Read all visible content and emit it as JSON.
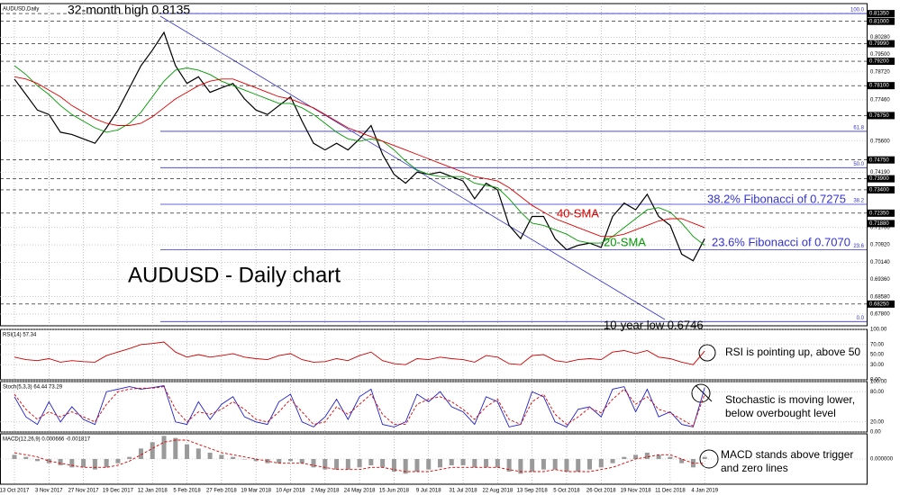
{
  "chart_data": [
    {
      "type": "line",
      "label": "AUDUSD,Daily",
      "title": "AUDUSD - Daily chart",
      "categories": [
        "13 Oct 2017",
        null,
        null,
        "3 Nov 2017",
        null,
        null,
        "27 Nov 2017",
        null,
        null,
        "19 Dec 2017",
        null,
        null,
        "12 Jan 2018",
        null,
        null,
        "5 Feb 2018",
        null,
        null,
        "27 Feb 2018",
        null,
        null,
        "19 Mar 2018",
        null,
        null,
        "10 Apr 2018",
        null,
        null,
        "2 May 2018",
        null,
        null,
        "24 May 2018",
        null,
        null,
        "15 Jun 2018",
        null,
        null,
        "9 Jul 2018",
        null,
        null,
        "31 Jul 2018",
        null,
        null,
        "22 Aug 2018",
        null,
        null,
        "13 Sep 2018",
        null,
        null,
        "5 Oct 2018",
        null,
        null,
        "26 Oct 2018",
        null,
        null,
        "19 Nov 2018",
        null,
        null,
        "11 Dec 2018",
        null,
        null,
        "4 Jan 2019"
      ],
      "series": [
        {
          "color": "#000000",
          "values": [
            0.784,
            0.777,
            0.77,
            0.768,
            0.76,
            0.759,
            0.757,
            0.755,
            0.762,
            0.77,
            0.78,
            0.79,
            0.797,
            0.805,
            0.79,
            0.782,
            0.785,
            0.778,
            0.78,
            0.782,
            0.775,
            0.77,
            0.768,
            0.772,
            0.776,
            0.765,
            0.755,
            0.752,
            0.755,
            0.752,
            0.757,
            0.763,
            0.75,
            0.741,
            0.737,
            0.742,
            0.741,
            0.742,
            0.74,
            0.738,
            0.73,
            0.737,
            0.734,
            0.718,
            0.712,
            0.722,
            0.722,
            0.712,
            0.707,
            0.709,
            0.71,
            0.708,
            0.722,
            0.728,
            0.725,
            0.732,
            0.722,
            0.718,
            0.705,
            0.702,
            0.712
          ]
        },
        {
          "color": "#009900",
          "values": [
            0.79,
            0.786,
            0.781,
            0.777,
            0.772,
            0.768,
            0.765,
            0.762,
            0.76,
            0.761,
            0.764,
            0.769,
            0.776,
            0.783,
            0.788,
            0.789,
            0.788,
            0.786,
            0.783,
            0.781,
            0.779,
            0.777,
            0.775,
            0.773,
            0.773,
            0.771,
            0.768,
            0.764,
            0.76,
            0.757,
            0.756,
            0.757,
            0.756,
            0.752,
            0.747,
            0.743,
            0.741,
            0.74,
            0.74,
            0.74,
            0.737,
            0.736,
            0.735,
            0.73,
            0.724,
            0.719,
            0.718,
            0.716,
            0.714,
            0.711,
            0.71,
            0.71,
            0.713,
            0.717,
            0.721,
            0.725,
            0.726,
            0.724,
            0.719,
            0.713,
            0.709
          ]
        },
        {
          "color": "#e00000",
          "values": [
            0.785,
            0.784,
            0.782,
            0.779,
            0.776,
            0.772,
            0.769,
            0.766,
            0.764,
            0.763,
            0.763,
            0.764,
            0.767,
            0.771,
            0.775,
            0.778,
            0.781,
            0.783,
            0.784,
            0.784,
            0.782,
            0.78,
            0.778,
            0.776,
            0.775,
            0.773,
            0.771,
            0.768,
            0.765,
            0.762,
            0.76,
            0.758,
            0.756,
            0.754,
            0.752,
            0.75,
            0.748,
            0.746,
            0.744,
            0.742,
            0.74,
            0.739,
            0.738,
            0.735,
            0.731,
            0.727,
            0.724,
            0.721,
            0.719,
            0.717,
            0.715,
            0.713,
            0.713,
            0.714,
            0.716,
            0.718,
            0.72,
            0.721,
            0.721,
            0.719,
            0.717
          ]
        }
      ],
      "ylim": [
        0.6727,
        0.818
      ],
      "yticks": [
        {
          "value": 0.8028,
          "label": "0.80280"
        },
        {
          "value": 0.795,
          "label": "0.79500"
        },
        {
          "value": 0.7872,
          "label": "0.78720"
        },
        {
          "value": 0.7746,
          "label": "0.77460"
        },
        {
          "value": 0.756,
          "label": "0.75600"
        },
        {
          "value": 0.7419,
          "label": "0.74190"
        },
        {
          "value": 0.717,
          "label": "0.71700"
        },
        {
          "value": 0.7092,
          "label": "0.70920"
        },
        {
          "value": 0.7014,
          "label": "0.70140"
        },
        {
          "value": 0.6936,
          "label": "0.69360"
        },
        {
          "value": 0.6858,
          "label": "0.68580"
        },
        {
          "value": 0.678,
          "label": "0.67800"
        }
      ],
      "levels": [
        {
          "value": 0.8135,
          "label": "0.81350"
        },
        {
          "value": 0.81,
          "label": "0.81000"
        },
        {
          "value": 0.7999,
          "label": "0.79990"
        },
        {
          "value": 0.792,
          "label": "0.79200"
        },
        {
          "value": 0.781,
          "label": "0.78100"
        },
        {
          "value": 0.7675,
          "label": "0.76750"
        },
        {
          "value": 0.7475,
          "label": "0.74750"
        },
        {
          "value": 0.739,
          "label": "0.73900"
        },
        {
          "value": 0.734,
          "label": "0.73400"
        },
        {
          "value": 0.7235,
          "label": "0.72350"
        },
        {
          "value": 0.6825,
          "label": "0.68250"
        }
      ],
      "last_price": {
        "value": 0.7188,
        "label": "0.71880"
      },
      "fibonacci": [
        {
          "value": 0.8135,
          "label": "100.0"
        },
        {
          "value": 0.7604,
          "label": "61.8"
        },
        {
          "value": 0.744,
          "label": "50.0"
        },
        {
          "value": 0.7275,
          "label": "38.2"
        },
        {
          "value": 0.707,
          "label": "23.6"
        },
        {
          "value": 0.6746,
          "label": "0.0"
        }
      ],
      "annotations": [
        "32-month high 0.8135",
        "38.2% Fibonacci of 0.7275",
        "23.6% Fibonacci of 0.7070",
        "40-SMA",
        "20-SMA",
        "10-year low 0.6746"
      ]
    },
    {
      "type": "line",
      "label": "RSI(14) 57.34",
      "series": [
        {
          "color": "#cc0000",
          "values": [
            45,
            40,
            38,
            42,
            35,
            38,
            36,
            35,
            48,
            55,
            62,
            70,
            72,
            75,
            55,
            45,
            50,
            45,
            48,
            52,
            45,
            42,
            40,
            48,
            52,
            40,
            35,
            36,
            42,
            38,
            48,
            55,
            38,
            32,
            30,
            42,
            40,
            45,
            42,
            40,
            35,
            48,
            45,
            32,
            30,
            48,
            50,
            38,
            35,
            40,
            42,
            40,
            55,
            58,
            52,
            58,
            45,
            42,
            35,
            30,
            57
          ]
        }
      ],
      "ylim": [
        0,
        100
      ],
      "yticks": [
        {
          "value": 100,
          "label": "100.00"
        },
        {
          "value": 70,
          "label": "70.00"
        },
        {
          "value": 50,
          "label": "50.00"
        },
        {
          "value": 30,
          "label": "30.00"
        },
        {
          "value": 0,
          "label": "0.00"
        }
      ],
      "annotations": [
        "RSI is pointing up, above 50"
      ]
    },
    {
      "type": "line",
      "label": "Stoch(5,3,3) 64.44 73.29",
      "series": [
        {
          "color": "#1f1fcc",
          "values": [
            70,
            30,
            15,
            60,
            20,
            50,
            25,
            15,
            80,
            85,
            90,
            85,
            88,
            92,
            20,
            15,
            60,
            25,
            55,
            70,
            30,
            20,
            15,
            60,
            75,
            20,
            10,
            30,
            65,
            25,
            70,
            85,
            15,
            10,
            20,
            75,
            60,
            80,
            50,
            40,
            15,
            70,
            60,
            10,
            15,
            80,
            70,
            20,
            10,
            45,
            50,
            30,
            85,
            90,
            40,
            85,
            30,
            40,
            15,
            10,
            88
          ]
        },
        {
          "color": "#dd0000",
          "style": "dashed",
          "values": [
            75,
            45,
            25,
            40,
            30,
            40,
            30,
            20,
            55,
            80,
            85,
            87,
            87,
            90,
            45,
            20,
            40,
            35,
            45,
            60,
            45,
            25,
            20,
            40,
            65,
            40,
            15,
            20,
            50,
            35,
            55,
            75,
            35,
            15,
            15,
            55,
            65,
            70,
            60,
            45,
            25,
            50,
            65,
            25,
            15,
            60,
            75,
            35,
            15,
            30,
            48,
            38,
            65,
            85,
            55,
            70,
            45,
            38,
            25,
            12,
            75
          ]
        }
      ],
      "ylim": [
        0,
        100
      ],
      "yticks": [
        {
          "value": 100,
          "label": "100.00"
        },
        {
          "value": 80,
          "label": "80.00"
        },
        {
          "value": 20,
          "label": "20.00"
        },
        {
          "value": 0,
          "label": "0.00"
        }
      ],
      "annotations": [
        "Stochastic is moving lower,",
        "below overbought level"
      ]
    },
    {
      "type": "bar",
      "label": "MACD(12,26,9) 0.000666 -0.001817",
      "series": [
        {
          "color": "#9a9a9a",
          "style": "bar",
          "values": [
            0.002,
            0.001,
            -0.001,
            -0.002,
            -0.003,
            -0.004,
            -0.004,
            -0.005,
            -0.004,
            -0.002,
            0.001,
            0.005,
            0.008,
            0.011,
            0.01,
            0.007,
            0.005,
            0.003,
            0.002,
            0.001,
            0,
            -0.001,
            -0.002,
            -0.002,
            -0.001,
            -0.002,
            -0.004,
            -0.005,
            -0.005,
            -0.005,
            -0.004,
            -0.003,
            -0.004,
            -0.006,
            -0.007,
            -0.006,
            -0.005,
            -0.004,
            -0.003,
            -0.003,
            -0.004,
            -0.004,
            -0.004,
            -0.006,
            -0.007,
            -0.006,
            -0.005,
            -0.005,
            -0.006,
            -0.006,
            -0.005,
            -0.004,
            -0.002,
            0.001,
            0.002,
            0.003,
            0.002,
            0.001,
            -0.002,
            -0.004,
            0.001
          ]
        },
        {
          "color": "#dd0000",
          "style": "dashed",
          "values": [
            0.003,
            0.002,
            0.001,
            -0.001,
            -0.002,
            -0.003,
            -0.004,
            -0.004,
            -0.004,
            -0.003,
            -0.001,
            0.002,
            0.005,
            0.008,
            0.009,
            0.009,
            0.007,
            0.005,
            0.003,
            0.002,
            0.001,
            0,
            -0.001,
            -0.002,
            -0.002,
            -0.002,
            -0.003,
            -0.004,
            -0.005,
            -0.005,
            -0.005,
            -0.004,
            -0.004,
            -0.005,
            -0.006,
            -0.006,
            -0.006,
            -0.005,
            -0.004,
            -0.004,
            -0.004,
            -0.004,
            -0.004,
            -0.005,
            -0.006,
            -0.006,
            -0.006,
            -0.005,
            -0.006,
            -0.006,
            -0.006,
            -0.005,
            -0.004,
            -0.002,
            0,
            0.001,
            0.002,
            0.002,
            0,
            -0.002,
            -0.002
          ]
        }
      ],
      "ylim": [
        -0.012,
        0.012
      ],
      "yticks": [
        {
          "value": 0,
          "label": "0.000000"
        }
      ],
      "annotations": [
        "MACD stands above trigger",
        "and zero lines"
      ]
    }
  ]
}
